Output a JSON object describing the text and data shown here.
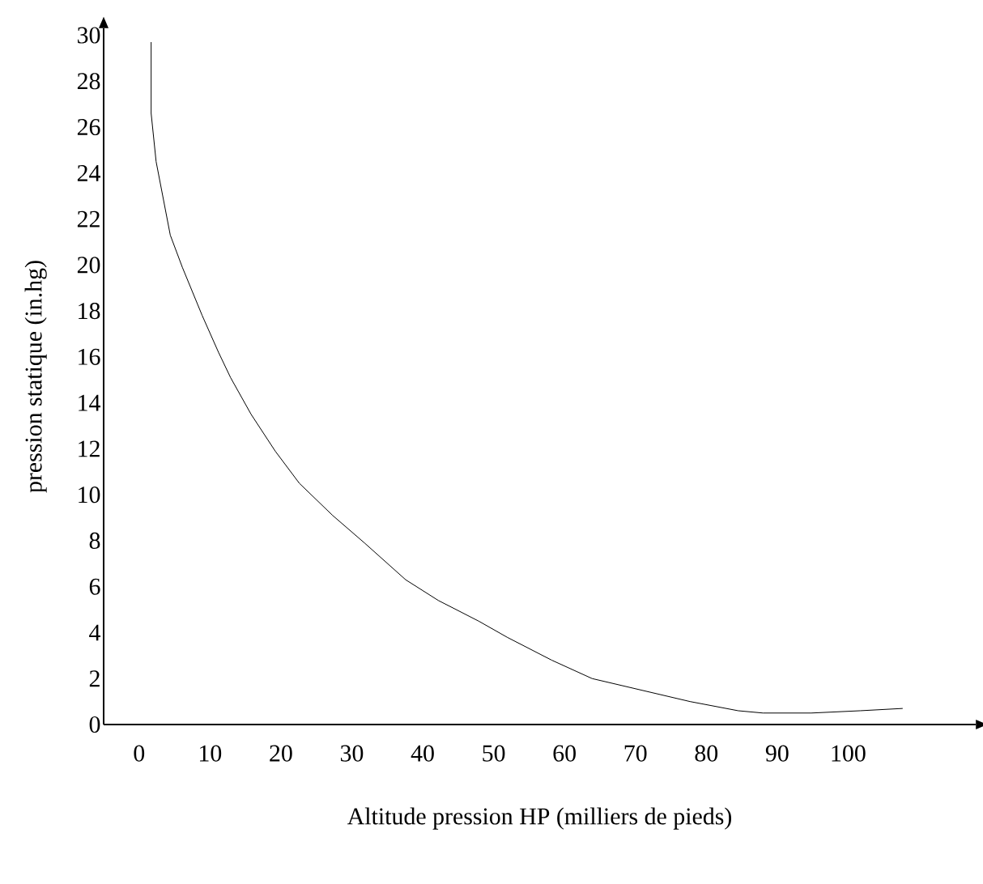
{
  "chart_data": {
    "type": "line",
    "xlabel": "Altitude pression HP (milliers de pieds)",
    "ylabel": "pression statique  (in.hg)",
    "x": [
      1.7,
      1.7,
      2.4,
      4.4,
      6.1,
      8.9,
      11.2,
      12.9,
      15.8,
      19.2,
      22.6,
      27.3,
      31.8,
      37.6,
      42.2,
      47.9,
      51.9,
      58.2,
      63.9,
      70.8,
      77.7,
      84.5,
      88.0,
      94.8,
      101.7,
      107.7
    ],
    "values": [
      29.7,
      26.6,
      24.5,
      21.3,
      19.9,
      17.8,
      16.2,
      15.1,
      13.5,
      11.9,
      10.5,
      9.1,
      7.9,
      6.3,
      5.4,
      4.5,
      3.8,
      2.8,
      2.0,
      1.5,
      1.0,
      0.6,
      0.5,
      0.5,
      0.6,
      0.7
    ],
    "color": "#000000",
    "marker": "none",
    "line_style": "solid",
    "grid": false,
    "xlim": [
      -5,
      118
    ],
    "ylim": [
      0,
      30.3
    ],
    "xticks": [
      0,
      10,
      20,
      30,
      40,
      50,
      60,
      70,
      80,
      90,
      100
    ],
    "yticks": [
      0,
      2,
      4,
      6,
      8,
      10,
      12,
      14,
      16,
      18,
      20,
      22,
      24,
      26,
      28,
      30
    ]
  }
}
